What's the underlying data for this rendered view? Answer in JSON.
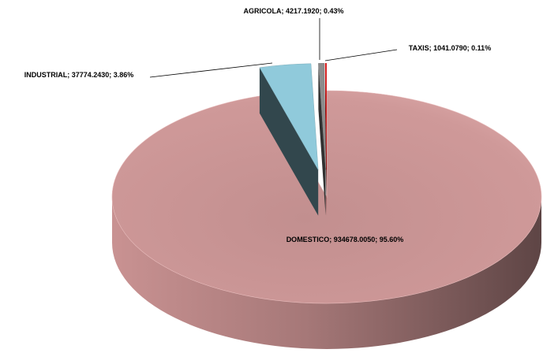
{
  "chart_data": {
    "type": "pie",
    "categories": [
      "DOMESTICO",
      "INDUSTRIAL",
      "AGRICOLA",
      "TAXIS"
    ],
    "values": [
      934678.005,
      37774.243,
      4217.192,
      1041.079
    ],
    "value_labels": [
      "934678.0050",
      "37774.2430",
      "4217.1920",
      "1041.0790"
    ],
    "percent_labels": [
      "95.60%",
      "3.86%",
      "0.43%",
      "0.11%"
    ],
    "label_separator": "; ",
    "colors": [
      "#d9a3a3",
      "#90cadb",
      "#8c8c8c",
      "#e41e1e"
    ]
  }
}
